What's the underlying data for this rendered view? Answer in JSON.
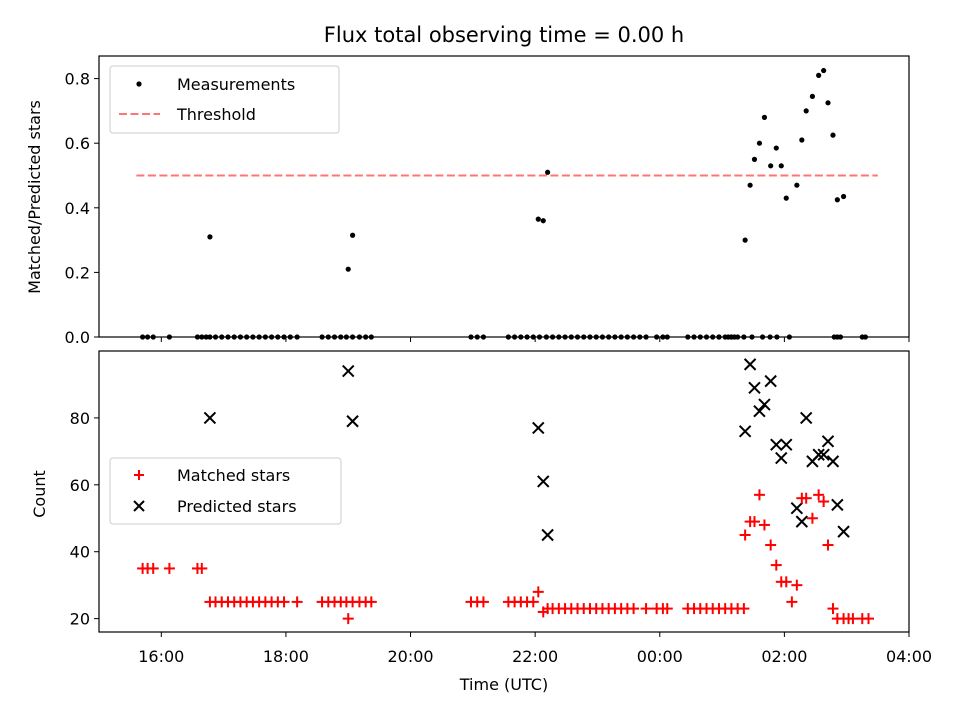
{
  "chart_data": [
    {
      "type": "scatter",
      "panel": "top",
      "title": "Flux total observing time = 0.00 h",
      "xlabel": "",
      "ylabel": "Matched/Predicted stars",
      "xlim": [
        15.0,
        28.0
      ],
      "ylim": [
        0.0,
        0.87
      ],
      "yticks": [
        0.0,
        0.2,
        0.4,
        0.6,
        0.8
      ],
      "ytick_labels": [
        "0.0",
        "0.2",
        "0.4",
        "0.6",
        "0.8"
      ],
      "legend_location": "upper left",
      "threshold": {
        "name": "Threshold",
        "value": 0.5,
        "x_start": 15.6,
        "x_end": 27.5,
        "color": "#ff7575",
        "style": "dashed"
      },
      "series": [
        {
          "name": "Measurements",
          "color": "#000000",
          "marker": "dot",
          "x": [
            15.7,
            15.78,
            15.87,
            16.13,
            16.58,
            16.65,
            16.72,
            16.78,
            16.87,
            16.97,
            17.07,
            17.17,
            17.27,
            17.37,
            17.47,
            17.57,
            17.67,
            17.77,
            17.87,
            17.97,
            18.07,
            18.18,
            18.58,
            18.68,
            18.78,
            18.88,
            18.97,
            19.07,
            19.18,
            19.28,
            19.37,
            20.97,
            21.07,
            21.17,
            21.57,
            21.67,
            21.77,
            21.87,
            21.97,
            22.07,
            22.18,
            22.28,
            22.38,
            22.48,
            22.58,
            22.68,
            22.78,
            22.88,
            22.98,
            23.08,
            23.18,
            23.28,
            23.38,
            23.48,
            23.58,
            23.68,
            23.78,
            23.95,
            24.05,
            24.12,
            24.45,
            24.55,
            24.65,
            24.75,
            24.85,
            24.95,
            25.05,
            25.15,
            25.25,
            25.35,
            25.1,
            25.15,
            25.2,
            24.95,
            25.48,
            25.65,
            25.77,
            25.88,
            26.08,
            26.8,
            26.85,
            26.9,
            27.25,
            27.3,
            16.78,
            19.0,
            19.07,
            22.05,
            22.13,
            22.2,
            25.37,
            25.45,
            25.52,
            25.6,
            25.68,
            25.78,
            25.87,
            25.95,
            26.03,
            26.2,
            26.28,
            26.35,
            26.45,
            26.55,
            26.63,
            26.7,
            26.78,
            26.85,
            26.95
          ],
          "y": [
            0,
            0,
            0,
            0,
            0,
            0,
            0,
            0,
            0,
            0,
            0,
            0,
            0,
            0,
            0,
            0,
            0,
            0,
            0,
            0,
            0,
            0,
            0,
            0,
            0,
            0,
            0,
            0,
            0,
            0,
            0,
            0,
            0,
            0,
            0,
            0,
            0,
            0,
            0,
            0,
            0,
            0,
            0,
            0,
            0,
            0,
            0,
            0,
            0,
            0,
            0,
            0,
            0,
            0,
            0,
            0,
            0,
            0,
            0,
            0,
            0,
            0,
            0,
            0,
            0,
            0,
            0,
            0,
            0,
            0,
            0,
            0,
            0,
            0,
            0,
            0,
            0,
            0,
            0,
            0,
            0,
            0,
            0,
            0,
            0.31,
            0.21,
            0.315,
            0.365,
            0.36,
            0.51,
            0.3,
            0.47,
            0.55,
            0.6,
            0.68,
            0.53,
            0.585,
            0.53,
            0.43,
            0.47,
            0.61,
            0.7,
            0.745,
            0.81,
            0.825,
            0.725,
            0.625,
            0.425,
            0.435
          ]
        }
      ]
    },
    {
      "type": "scatter",
      "panel": "bottom",
      "title": "",
      "xlabel": "Time (UTC)",
      "ylabel": "Count",
      "xlim": [
        15.0,
        28.0
      ],
      "ylim": [
        16,
        100
      ],
      "xticks": [
        16,
        18,
        20,
        22,
        24,
        26,
        28
      ],
      "xtick_labels": [
        "16:00",
        "18:00",
        "20:00",
        "22:00",
        "00:00",
        "02:00",
        "04:00"
      ],
      "yticks": [
        20,
        40,
        60,
        80
      ],
      "ytick_labels": [
        "20",
        "40",
        "60",
        "80"
      ],
      "legend_location": "center left",
      "series": [
        {
          "name": "Matched stars",
          "color": "#ff0000",
          "marker": "plus",
          "x": [
            15.7,
            15.78,
            15.87,
            16.13,
            16.58,
            16.65,
            16.78,
            16.87,
            16.97,
            17.07,
            17.17,
            17.27,
            17.37,
            17.47,
            17.57,
            17.67,
            17.77,
            17.87,
            17.97,
            18.18,
            18.58,
            18.68,
            18.78,
            18.88,
            18.97,
            19.07,
            19.18,
            19.28,
            19.37,
            20.97,
            21.07,
            21.17,
            21.57,
            21.67,
            21.77,
            21.87,
            21.97,
            22.05,
            22.13,
            22.2,
            22.28,
            22.38,
            22.48,
            22.58,
            22.68,
            22.78,
            22.88,
            22.98,
            23.08,
            23.18,
            23.28,
            23.38,
            23.48,
            23.58,
            23.78,
            23.95,
            24.05,
            24.12,
            24.45,
            24.55,
            24.65,
            24.75,
            24.85,
            24.95,
            25.05,
            25.15,
            25.25,
            25.35,
            25.37,
            25.45,
            25.52,
            25.6,
            25.68,
            25.78,
            25.87,
            25.95,
            26.03,
            26.12,
            26.2,
            26.28,
            26.35,
            26.45,
            26.55,
            26.63,
            26.7,
            26.78,
            26.85,
            26.95,
            27.03,
            27.1,
            27.25,
            27.35,
            19.0
          ],
          "y": [
            35,
            35,
            35,
            35,
            35,
            35,
            25,
            25,
            25,
            25,
            25,
            25,
            25,
            25,
            25,
            25,
            25,
            25,
            25,
            25,
            25,
            25,
            25,
            25,
            25,
            25,
            25,
            25,
            25,
            25,
            25,
            25,
            25,
            25,
            25,
            25,
            25,
            28,
            22,
            23,
            23,
            23,
            23,
            23,
            23,
            23,
            23,
            23,
            23,
            23,
            23,
            23,
            23,
            23,
            23,
            23,
            23,
            23,
            23,
            23,
            23,
            23,
            23,
            23,
            23,
            23,
            23,
            23,
            45,
            49,
            49,
            57,
            48,
            42,
            36,
            31,
            31,
            25,
            30,
            56,
            56,
            50,
            57,
            55,
            42,
            23,
            20,
            20,
            20,
            20,
            20,
            20,
            20
          ]
        },
        {
          "name": "Predicted stars",
          "color": "#000000",
          "marker": "x",
          "x": [
            16.78,
            19.0,
            19.07,
            22.05,
            22.13,
            22.2,
            25.37,
            25.45,
            25.52,
            25.6,
            25.68,
            25.78,
            25.87,
            25.95,
            26.03,
            26.2,
            26.28,
            26.35,
            26.45,
            26.55,
            26.63,
            26.7,
            26.78,
            26.85,
            26.95
          ],
          "y": [
            80,
            94,
            79,
            77,
            61,
            45,
            76,
            96,
            89,
            82,
            84,
            91,
            72,
            68,
            72,
            53,
            49,
            80,
            67,
            69,
            69,
            73,
            67,
            54,
            46
          ]
        }
      ]
    }
  ]
}
